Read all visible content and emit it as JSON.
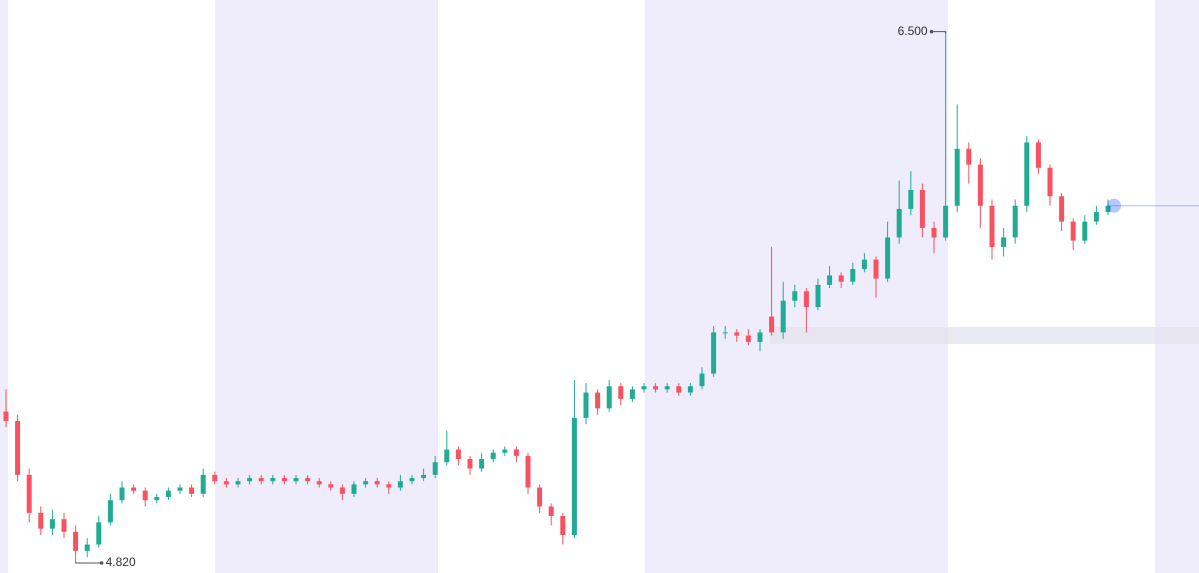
{
  "chart_data": {
    "type": "candlestick",
    "ylim": [
      4.79,
      6.6
    ],
    "up_color": "#22ab94",
    "down_color": "#f7525f",
    "last_price_color": "#2962ff",
    "open": [
      5.3,
      5.27,
      5.1,
      4.98,
      4.93,
      4.96,
      4.92,
      4.86,
      4.88,
      4.95,
      5.02,
      5.06,
      5.05,
      5.02,
      5.03,
      5.05,
      5.06,
      5.04,
      5.1,
      5.08,
      5.07,
      5.08,
      5.09,
      5.08,
      5.09,
      5.08,
      5.09,
      5.08,
      5.07,
      5.06,
      5.04,
      5.07,
      5.08,
      5.07,
      5.06,
      5.08,
      5.09,
      5.1,
      5.14,
      5.18,
      5.15,
      5.12,
      5.15,
      5.17,
      5.18,
      5.16,
      5.06,
      5.0,
      4.97,
      4.91,
      5.28,
      5.36,
      5.31,
      5.38,
      5.34,
      5.37,
      5.38,
      5.37,
      5.38,
      5.36,
      5.38,
      5.42,
      5.55,
      5.55,
      5.54,
      5.52,
      5.6,
      5.55,
      5.65,
      5.68,
      5.63,
      5.7,
      5.73,
      5.71,
      5.75,
      5.78,
      5.72,
      5.85,
      5.94,
      6.0,
      5.88,
      5.85,
      5.95,
      6.13,
      6.08,
      5.95,
      5.82,
      5.85,
      5.95,
      6.15,
      6.07,
      5.98,
      5.9,
      5.84,
      5.9,
      5.93
    ],
    "high": [
      5.37,
      5.29,
      5.12,
      5.0,
      4.99,
      4.98,
      4.94,
      4.9,
      4.97,
      5.04,
      5.08,
      5.07,
      5.06,
      5.04,
      5.06,
      5.07,
      5.07,
      5.12,
      5.11,
      5.09,
      5.09,
      5.1,
      5.1,
      5.1,
      5.1,
      5.1,
      5.1,
      5.09,
      5.08,
      5.07,
      5.08,
      5.09,
      5.09,
      5.08,
      5.1,
      5.1,
      5.12,
      5.16,
      5.24,
      5.19,
      5.16,
      5.17,
      5.18,
      5.19,
      5.19,
      5.17,
      5.07,
      5.01,
      4.98,
      5.4,
      5.39,
      5.37,
      5.4,
      5.39,
      5.38,
      5.39,
      5.39,
      5.39,
      5.39,
      5.39,
      5.44,
      5.57,
      5.57,
      5.56,
      5.56,
      5.56,
      5.82,
      5.71,
      5.7,
      5.69,
      5.72,
      5.76,
      5.74,
      5.77,
      5.8,
      5.79,
      5.9,
      6.03,
      6.06,
      6.02,
      5.9,
      6.5,
      6.27,
      6.15,
      6.1,
      5.97,
      5.88,
      5.97,
      6.17,
      6.16,
      6.08,
      5.99,
      5.91,
      5.92,
      5.95,
      5.97
    ],
    "low": [
      5.25,
      5.08,
      4.95,
      4.91,
      4.91,
      4.9,
      4.82,
      4.84,
      4.87,
      4.94,
      5.01,
      5.04,
      5.0,
      5.01,
      5.02,
      5.04,
      5.03,
      5.03,
      5.07,
      5.06,
      5.06,
      5.07,
      5.07,
      5.07,
      5.07,
      5.07,
      5.07,
      5.06,
      5.05,
      5.02,
      5.03,
      5.06,
      5.06,
      5.04,
      5.05,
      5.07,
      5.08,
      5.09,
      5.13,
      5.13,
      5.1,
      5.11,
      5.14,
      5.16,
      5.14,
      5.04,
      4.98,
      4.94,
      4.88,
      4.9,
      5.26,
      5.29,
      5.3,
      5.32,
      5.33,
      5.36,
      5.36,
      5.36,
      5.35,
      5.35,
      5.37,
      5.41,
      5.53,
      5.52,
      5.51,
      5.49,
      5.54,
      5.53,
      5.63,
      5.55,
      5.62,
      5.69,
      5.69,
      5.7,
      5.74,
      5.66,
      5.71,
      5.83,
      5.92,
      5.85,
      5.8,
      5.84,
      5.93,
      6.02,
      5.88,
      5.78,
      5.79,
      5.83,
      5.93,
      6.05,
      5.95,
      5.87,
      5.81,
      5.83,
      5.89,
      5.92
    ],
    "close": [
      5.27,
      5.1,
      4.98,
      4.93,
      4.96,
      4.92,
      4.86,
      4.88,
      4.95,
      5.02,
      5.06,
      5.05,
      5.02,
      5.03,
      5.05,
      5.06,
      5.04,
      5.1,
      5.08,
      5.07,
      5.08,
      5.09,
      5.08,
      5.09,
      5.08,
      5.09,
      5.08,
      5.07,
      5.06,
      5.04,
      5.07,
      5.08,
      5.07,
      5.06,
      5.08,
      5.09,
      5.1,
      5.14,
      5.18,
      5.15,
      5.12,
      5.15,
      5.17,
      5.18,
      5.16,
      5.06,
      5.0,
      4.97,
      4.91,
      5.28,
      5.36,
      5.31,
      5.38,
      5.34,
      5.37,
      5.38,
      5.37,
      5.38,
      5.36,
      5.38,
      5.42,
      5.55,
      5.55,
      5.54,
      5.52,
      5.55,
      5.55,
      5.65,
      5.68,
      5.63,
      5.7,
      5.73,
      5.71,
      5.75,
      5.78,
      5.72,
      5.85,
      5.94,
      6.0,
      5.88,
      5.85,
      5.95,
      6.13,
      6.08,
      5.95,
      5.82,
      5.85,
      5.95,
      6.15,
      6.07,
      5.98,
      5.9,
      5.84,
      5.9,
      5.93,
      5.95
    ],
    "annotations": [
      {
        "index": 81,
        "value": 6.5,
        "label": "6.500"
      },
      {
        "index": 6,
        "value": 4.82,
        "label": "4.820"
      }
    ]
  }
}
